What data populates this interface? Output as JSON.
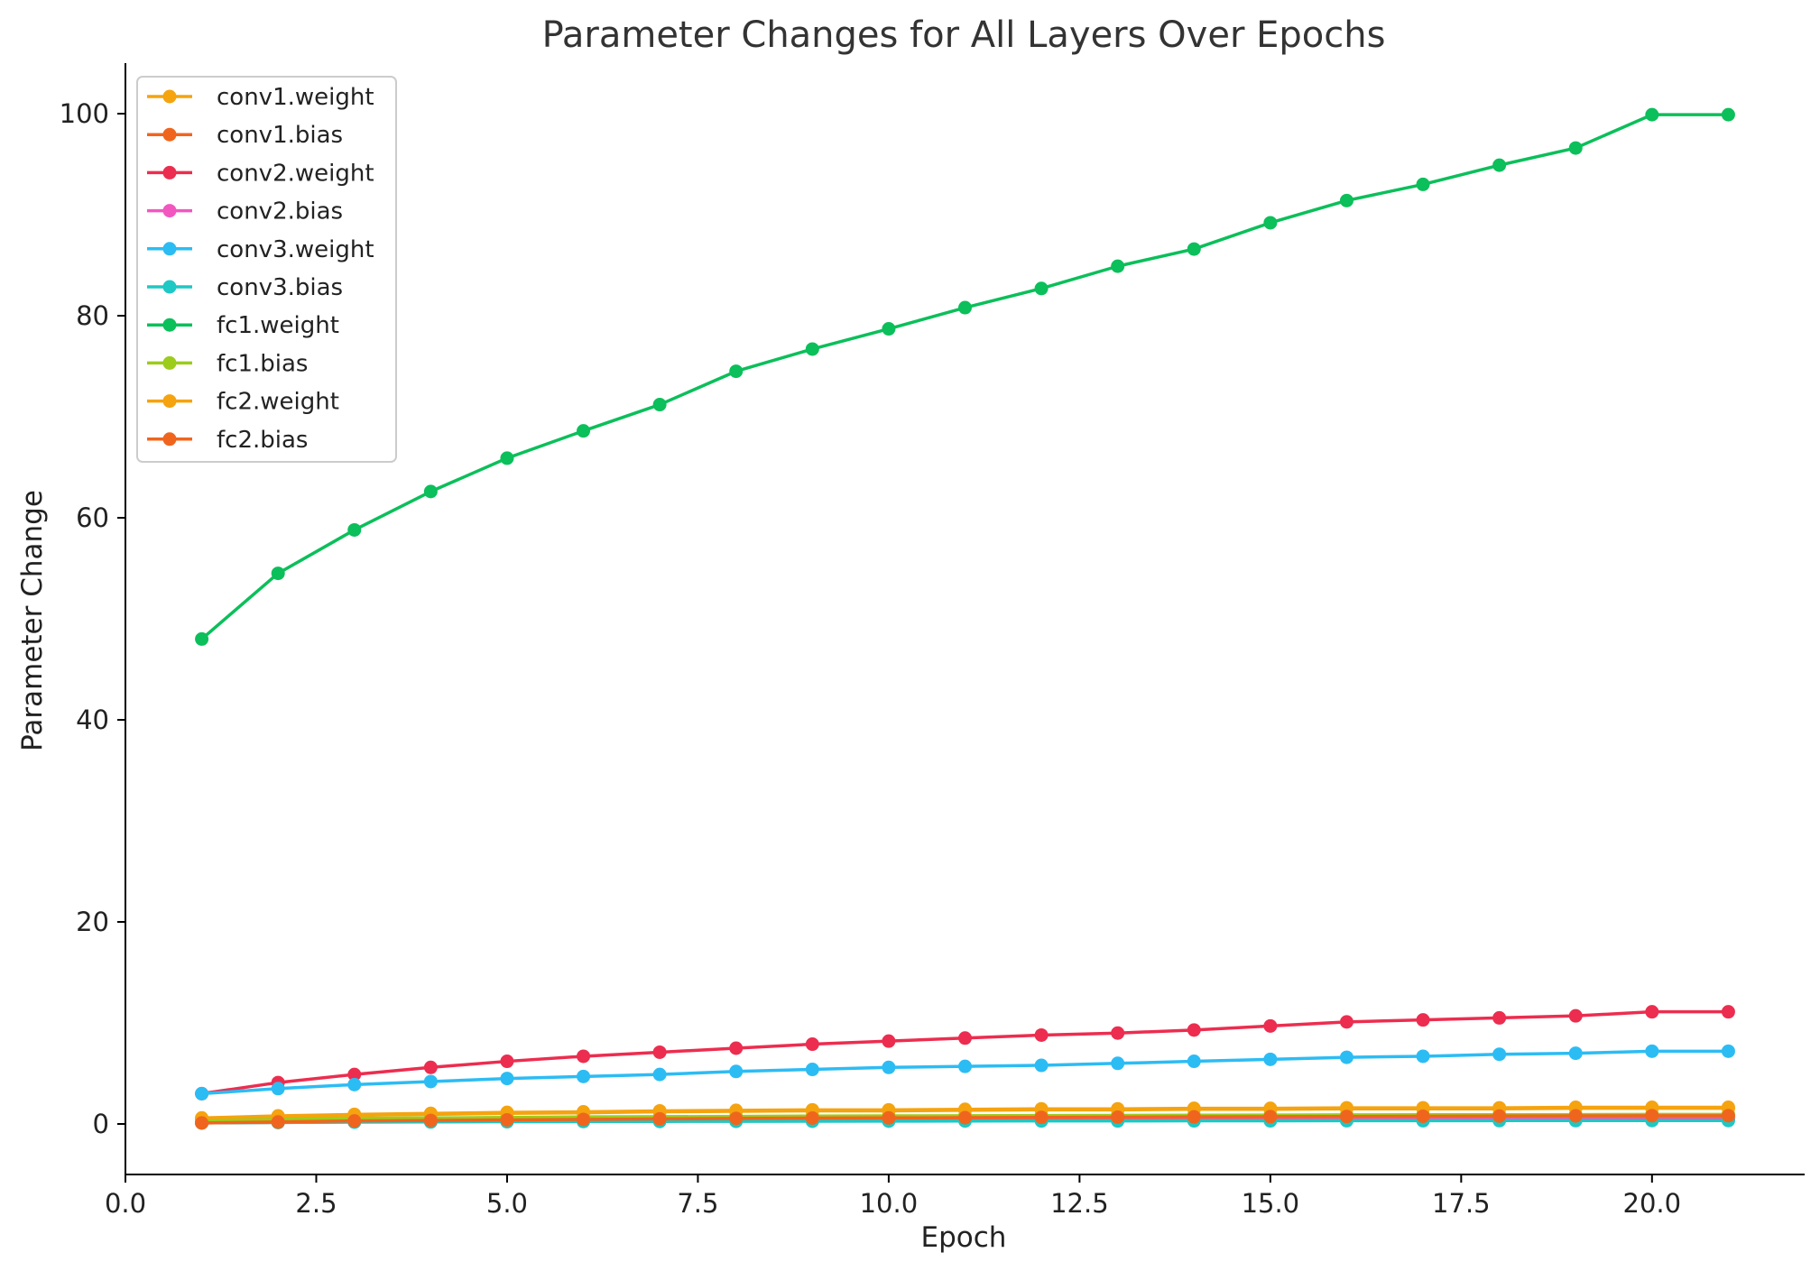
{
  "chart_data": {
    "type": "line",
    "title": "Parameter Changes for All Layers Over Epochs",
    "xlabel": "Epoch",
    "ylabel": "Parameter Change",
    "xlim": [
      0,
      22
    ],
    "ylim": [
      -5,
      105
    ],
    "xticks": [
      0.0,
      2.5,
      5.0,
      7.5,
      10.0,
      12.5,
      15.0,
      17.5,
      20.0
    ],
    "xtick_labels": [
      "0.0",
      "2.5",
      "5.0",
      "7.5",
      "10.0",
      "12.5",
      "15.0",
      "17.5",
      "20.0"
    ],
    "yticks": [
      0,
      20,
      40,
      60,
      80,
      100
    ],
    "ytick_labels": [
      "0",
      "20",
      "40",
      "60",
      "80",
      "100"
    ],
    "grid": false,
    "legend_position": "top-left",
    "x": [
      1,
      2,
      3,
      4,
      5,
      6,
      7,
      8,
      9,
      10,
      11,
      12,
      13,
      14,
      15,
      16,
      17,
      18,
      19,
      20,
      21
    ],
    "series": [
      {
        "name": "conv1.weight",
        "color": "#f5a30f",
        "values": [
          0.5,
          0.7,
          0.85,
          0.95,
          1.05,
          1.1,
          1.2,
          1.25,
          1.3,
          1.3,
          1.35,
          1.4,
          1.4,
          1.45,
          1.45,
          1.5,
          1.5,
          1.5,
          1.55,
          1.55,
          1.55
        ]
      },
      {
        "name": "conv1.bias",
        "color": "#f0651d",
        "values": [
          0.1,
          0.15,
          0.2,
          0.22,
          0.25,
          0.27,
          0.3,
          0.3,
          0.32,
          0.33,
          0.35,
          0.35,
          0.36,
          0.37,
          0.38,
          0.38,
          0.39,
          0.4,
          0.4,
          0.41,
          0.41
        ]
      },
      {
        "name": "conv2.weight",
        "color": "#ec2d4f",
        "values": [
          3.0,
          4.1,
          4.9,
          5.6,
          6.2,
          6.7,
          7.1,
          7.5,
          7.9,
          8.2,
          8.5,
          8.8,
          9.0,
          9.3,
          9.7,
          10.1,
          10.3,
          10.5,
          10.7,
          11.1,
          11.1
        ]
      },
      {
        "name": "conv2.bias",
        "color": "#f257c0",
        "values": [
          0.2,
          0.3,
          0.35,
          0.4,
          0.45,
          0.47,
          0.5,
          0.52,
          0.55,
          0.56,
          0.58,
          0.6,
          0.6,
          0.62,
          0.63,
          0.64,
          0.65,
          0.66,
          0.67,
          0.68,
          0.68
        ]
      },
      {
        "name": "conv3.weight",
        "color": "#2cbcf4",
        "values": [
          3.0,
          3.5,
          3.9,
          4.2,
          4.5,
          4.7,
          4.9,
          5.2,
          5.4,
          5.6,
          5.7,
          5.8,
          6.0,
          6.2,
          6.4,
          6.6,
          6.7,
          6.9,
          7.0,
          7.2,
          7.2
        ]
      },
      {
        "name": "conv3.bias",
        "color": "#1ec8c4",
        "values": [
          0.1,
          0.15,
          0.18,
          0.2,
          0.22,
          0.24,
          0.25,
          0.26,
          0.27,
          0.28,
          0.29,
          0.3,
          0.3,
          0.31,
          0.31,
          0.32,
          0.32,
          0.33,
          0.33,
          0.34,
          0.34
        ]
      },
      {
        "name": "fc1.weight",
        "color": "#0bbf5a",
        "values": [
          48.0,
          54.5,
          58.8,
          62.6,
          65.9,
          68.6,
          71.2,
          74.5,
          76.7,
          78.7,
          80.8,
          82.7,
          84.9,
          86.6,
          89.2,
          91.4,
          93.0,
          94.9,
          96.6,
          99.9,
          99.9
        ]
      },
      {
        "name": "fc1.bias",
        "color": "#9ccc1c",
        "values": [
          0.3,
          0.45,
          0.55,
          0.6,
          0.65,
          0.7,
          0.72,
          0.75,
          0.78,
          0.8,
          0.82,
          0.84,
          0.85,
          0.87,
          0.88,
          0.9,
          0.91,
          0.92,
          0.93,
          0.95,
          0.95
        ]
      },
      {
        "name": "fc2.weight",
        "color": "#f5a30f",
        "values": [
          0.6,
          0.8,
          0.95,
          1.05,
          1.15,
          1.2,
          1.3,
          1.35,
          1.4,
          1.4,
          1.45,
          1.5,
          1.5,
          1.55,
          1.55,
          1.6,
          1.6,
          1.6,
          1.65,
          1.65,
          1.65
        ]
      },
      {
        "name": "fc2.bias",
        "color": "#f0651d",
        "values": [
          0.1,
          0.2,
          0.3,
          0.35,
          0.4,
          0.45,
          0.5,
          0.55,
          0.58,
          0.6,
          0.62,
          0.65,
          0.67,
          0.7,
          0.72,
          0.74,
          0.76,
          0.78,
          0.8,
          0.82,
          0.82
        ]
      }
    ]
  }
}
